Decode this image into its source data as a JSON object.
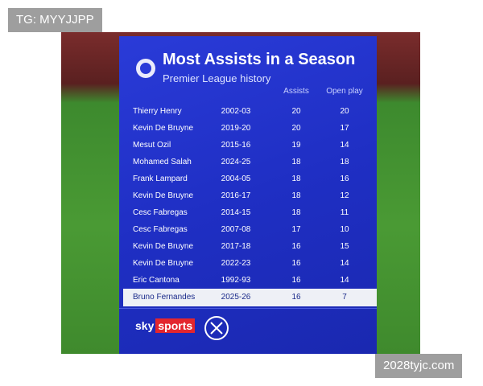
{
  "watermark_top": "TG: MYYJJPP",
  "watermark_bottom": "2028tyjc.com",
  "header": {
    "title": "Most Assists in a Season",
    "subtitle": "Premier League history"
  },
  "table": {
    "columns": [
      "Assists",
      "Open play"
    ],
    "rows": [
      [
        "Thierry Henry",
        "2002-03",
        20,
        20
      ],
      [
        "Kevin De Bruyne",
        "2019-20",
        20,
        17
      ],
      [
        "Mesut Ozil",
        "2015-16",
        19,
        14
      ],
      [
        "Mohamed Salah",
        "2024-25",
        18,
        18
      ],
      [
        "Frank Lampard",
        "2004-05",
        18,
        16
      ],
      [
        "Kevin De Bruyne",
        "2016-17",
        18,
        12
      ],
      [
        "Cesc Fabregas",
        "2014-15",
        18,
        11
      ],
      [
        "Cesc Fabregas",
        "2007-08",
        17,
        10
      ],
      [
        "Kevin De Bruyne",
        "2017-18",
        16,
        15
      ],
      [
        "Kevin De Bruyne",
        "2022-23",
        16,
        14
      ],
      [
        "Eric Cantona",
        "1992-93",
        16,
        14
      ],
      [
        "Bruno Fernandes",
        "2025-26",
        16,
        7
      ]
    ]
  },
  "footer": {
    "brand": "sky",
    "brand_sub": "sports"
  }
}
